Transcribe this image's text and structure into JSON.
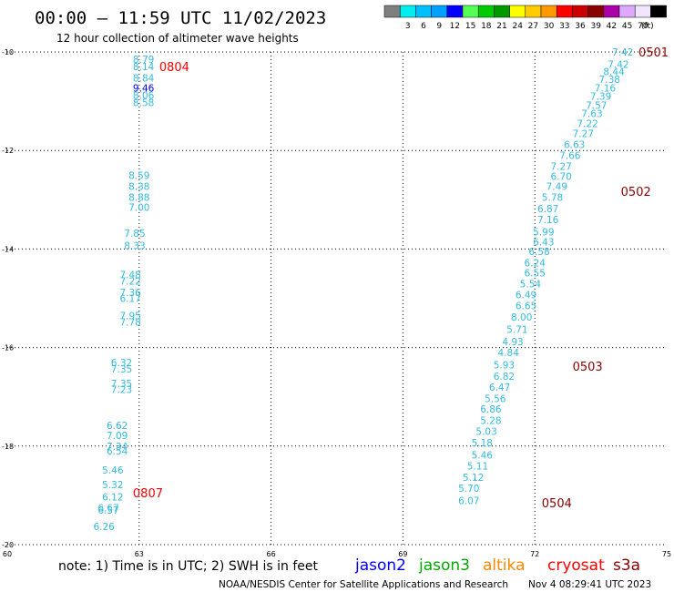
{
  "header": {
    "title": "00:00 – 11:59 UTC 11/02/2023",
    "subtitle": "12 hour collection of altimeter wave heights"
  },
  "legend": {
    "unit": "(ft)",
    "bins": [
      {
        "label": "",
        "color": "#7f7f7f"
      },
      {
        "label": "3",
        "color": "#00eeee"
      },
      {
        "label": "6",
        "color": "#00bfff"
      },
      {
        "label": "9",
        "color": "#00a0ff"
      },
      {
        "label": "12",
        "color": "#0000ff"
      },
      {
        "label": "15",
        "color": "#55ff55"
      },
      {
        "label": "18",
        "color": "#00cc00"
      },
      {
        "label": "21",
        "color": "#009900"
      },
      {
        "label": "24",
        "color": "#ffff00"
      },
      {
        "label": "27",
        "color": "#ffcc00"
      },
      {
        "label": "30",
        "color": "#ff9900"
      },
      {
        "label": "33",
        "color": "#ff0000"
      },
      {
        "label": "36",
        "color": "#cc0000"
      },
      {
        "label": "39",
        "color": "#880000"
      },
      {
        "label": "42",
        "color": "#aa00aa"
      },
      {
        "label": "45",
        "color": "#ddaaff"
      },
      {
        "label": "70",
        "color": "#f2e6ff"
      },
      {
        "label": "",
        "color": "#000000"
      }
    ]
  },
  "chart_data": {
    "type": "scatter",
    "xlim": [
      60,
      75
    ],
    "ylim": [
      -20,
      -10
    ],
    "x_ticks": [
      60,
      63,
      66,
      69,
      72,
      75
    ],
    "y_ticks": [
      -10,
      -12,
      -14,
      -16,
      -18,
      -20
    ],
    "grid": true,
    "colors": {
      "c": "#33bbdd",
      "b": "#0000ff"
    },
    "wave_points": [
      {
        "x": 63.1,
        "y": -10.15,
        "v": "8.79",
        "c": "c"
      },
      {
        "x": 63.1,
        "y": -10.3,
        "v": "8.14",
        "c": "c"
      },
      {
        "x": 63.1,
        "y": -10.53,
        "v": "8.84",
        "c": "c"
      },
      {
        "x": 63.1,
        "y": -10.73,
        "v": "9.46",
        "c": "b"
      },
      {
        "x": 63.1,
        "y": -10.88,
        "v": "8.06",
        "c": "c"
      },
      {
        "x": 63.1,
        "y": -11.03,
        "v": "8.58",
        "c": "c"
      },
      {
        "x": 63.0,
        "y": -12.5,
        "v": "8.59",
        "c": "c"
      },
      {
        "x": 63.0,
        "y": -12.73,
        "v": "8.38",
        "c": "c"
      },
      {
        "x": 63.0,
        "y": -12.95,
        "v": "8.88",
        "c": "c"
      },
      {
        "x": 63.0,
        "y": -13.15,
        "v": "7.00",
        "c": "c"
      },
      {
        "x": 62.9,
        "y": -13.68,
        "v": "7.85",
        "c": "c"
      },
      {
        "x": 62.9,
        "y": -13.93,
        "v": "8.33",
        "c": "c"
      },
      {
        "x": 62.8,
        "y": -14.52,
        "v": "7.48",
        "c": "c"
      },
      {
        "x": 62.8,
        "y": -14.65,
        "v": "7.22",
        "c": "c"
      },
      {
        "x": 62.8,
        "y": -14.88,
        "v": "7.36",
        "c": "c"
      },
      {
        "x": 62.8,
        "y": -15.0,
        "v": "6.17",
        "c": "c"
      },
      {
        "x": 62.8,
        "y": -15.35,
        "v": "7.95",
        "c": "c"
      },
      {
        "x": 62.8,
        "y": -15.48,
        "v": "7.78",
        "c": "c"
      },
      {
        "x": 62.6,
        "y": -16.3,
        "v": "6.32",
        "c": "c"
      },
      {
        "x": 62.6,
        "y": -16.43,
        "v": "7.35",
        "c": "c"
      },
      {
        "x": 62.6,
        "y": -16.73,
        "v": "7.35",
        "c": "c"
      },
      {
        "x": 62.6,
        "y": -16.85,
        "v": "7.23",
        "c": "c"
      },
      {
        "x": 62.5,
        "y": -17.58,
        "v": "6.62",
        "c": "c"
      },
      {
        "x": 62.5,
        "y": -17.78,
        "v": "7.09",
        "c": "c"
      },
      {
        "x": 62.5,
        "y": -18.0,
        "v": "7.34",
        "c": "c"
      },
      {
        "x": 62.5,
        "y": -18.1,
        "v": "6.54",
        "c": "c"
      },
      {
        "x": 62.4,
        "y": -18.48,
        "v": "5.46",
        "c": "c"
      },
      {
        "x": 62.4,
        "y": -18.78,
        "v": "5.32",
        "c": "c"
      },
      {
        "x": 62.4,
        "y": -19.03,
        "v": "6.12",
        "c": "c"
      },
      {
        "x": 62.3,
        "y": -19.25,
        "v": "6.67",
        "c": "c"
      },
      {
        "x": 62.3,
        "y": -19.3,
        "v": "6.57",
        "c": "c"
      },
      {
        "x": 62.2,
        "y": -19.63,
        "v": "6.26",
        "c": "c"
      },
      {
        "x": 74.0,
        "y": -10.0,
        "v": "7.42",
        "c": "c"
      },
      {
        "x": 73.9,
        "y": -10.25,
        "v": "7.42",
        "c": "c"
      },
      {
        "x": 73.8,
        "y": -10.4,
        "v": "8.44",
        "c": "c"
      },
      {
        "x": 73.7,
        "y": -10.55,
        "v": "7.38",
        "c": "c"
      },
      {
        "x": 73.6,
        "y": -10.73,
        "v": "7.16",
        "c": "c"
      },
      {
        "x": 73.5,
        "y": -10.9,
        "v": "7.39",
        "c": "c"
      },
      {
        "x": 73.4,
        "y": -11.08,
        "v": "7.57",
        "c": "c"
      },
      {
        "x": 73.3,
        "y": -11.25,
        "v": "7.63",
        "c": "c"
      },
      {
        "x": 73.2,
        "y": -11.45,
        "v": "7.22",
        "c": "c"
      },
      {
        "x": 73.1,
        "y": -11.65,
        "v": "7.27",
        "c": "c"
      },
      {
        "x": 72.9,
        "y": -11.88,
        "v": "6.63",
        "c": "c"
      },
      {
        "x": 72.8,
        "y": -12.1,
        "v": "7.66",
        "c": "c"
      },
      {
        "x": 72.6,
        "y": -12.32,
        "v": "7.27",
        "c": "c"
      },
      {
        "x": 72.6,
        "y": -12.52,
        "v": "6.70",
        "c": "c"
      },
      {
        "x": 72.5,
        "y": -12.73,
        "v": "7.49",
        "c": "c"
      },
      {
        "x": 72.4,
        "y": -12.95,
        "v": "5.78",
        "c": "c"
      },
      {
        "x": 72.3,
        "y": -13.18,
        "v": "6.87",
        "c": "c"
      },
      {
        "x": 72.3,
        "y": -13.4,
        "v": "7.16",
        "c": "c"
      },
      {
        "x": 72.2,
        "y": -13.65,
        "v": "5.99",
        "c": "c"
      },
      {
        "x": 72.2,
        "y": -13.85,
        "v": "6.43",
        "c": "c"
      },
      {
        "x": 72.1,
        "y": -14.05,
        "v": "6.58",
        "c": "c"
      },
      {
        "x": 72.0,
        "y": -14.28,
        "v": "6.24",
        "c": "c"
      },
      {
        "x": 72.0,
        "y": -14.48,
        "v": "6.55",
        "c": "c"
      },
      {
        "x": 71.9,
        "y": -14.7,
        "v": "5.54",
        "c": "c"
      },
      {
        "x": 71.8,
        "y": -14.93,
        "v": "6.49",
        "c": "c"
      },
      {
        "x": 71.8,
        "y": -15.15,
        "v": "6.65",
        "c": "c"
      },
      {
        "x": 71.7,
        "y": -15.38,
        "v": "8.00",
        "c": "c"
      },
      {
        "x": 71.6,
        "y": -15.63,
        "v": "5.71",
        "c": "c"
      },
      {
        "x": 71.5,
        "y": -15.88,
        "v": "4.93",
        "c": "c"
      },
      {
        "x": 71.4,
        "y": -16.1,
        "v": "4.84",
        "c": "c"
      },
      {
        "x": 71.3,
        "y": -16.35,
        "v": "5.93",
        "c": "c"
      },
      {
        "x": 71.3,
        "y": -16.58,
        "v": "6.82",
        "c": "c"
      },
      {
        "x": 71.2,
        "y": -16.8,
        "v": "6.47",
        "c": "c"
      },
      {
        "x": 71.1,
        "y": -17.03,
        "v": "5.56",
        "c": "c"
      },
      {
        "x": 71.0,
        "y": -17.25,
        "v": "6.86",
        "c": "c"
      },
      {
        "x": 71.0,
        "y": -17.48,
        "v": "5.28",
        "c": "c"
      },
      {
        "x": 70.9,
        "y": -17.7,
        "v": "5.03",
        "c": "c"
      },
      {
        "x": 70.8,
        "y": -17.93,
        "v": "5.18",
        "c": "c"
      },
      {
        "x": 70.8,
        "y": -18.18,
        "v": "5.46",
        "c": "c"
      },
      {
        "x": 70.7,
        "y": -18.4,
        "v": "5.11",
        "c": "c"
      },
      {
        "x": 70.6,
        "y": -18.63,
        "v": "5.12",
        "c": "c"
      },
      {
        "x": 70.5,
        "y": -18.85,
        "v": "5.70",
        "c": "c"
      },
      {
        "x": 70.5,
        "y": -19.1,
        "v": "6.07",
        "c": "c"
      }
    ],
    "pass_labels": [
      {
        "x": 63.8,
        "y": -10.3,
        "t": "0804",
        "c": "#ff0000"
      },
      {
        "x": 74.7,
        "y": -10.0,
        "t": "0501",
        "c": "#880000"
      },
      {
        "x": 74.3,
        "y": -12.83,
        "t": "0502",
        "c": "#880000"
      },
      {
        "x": 73.2,
        "y": -16.38,
        "t": "0503",
        "c": "#880000"
      },
      {
        "x": 72.5,
        "y": -19.15,
        "t": "0504",
        "c": "#880000"
      },
      {
        "x": 63.2,
        "y": -18.95,
        "t": "0807",
        "c": "#ff0000"
      }
    ]
  },
  "footer": {
    "note": "note: 1) Time is in UTC; 2) SWH is in feet",
    "satellites": [
      {
        "name": "jason2",
        "color": "#0000ff"
      },
      {
        "name": "jason3",
        "color": "#00aa00"
      },
      {
        "name": "altika",
        "color": "#ff8800"
      },
      {
        "name": "cryosat",
        "color": "#ff0000"
      },
      {
        "name": "s3a",
        "color": "#880000"
      }
    ],
    "credit": "NOAA/NESDIS Center for Satellite Applications and Research",
    "timestamp": "Nov  4 08:29:41 UTC 2023"
  }
}
